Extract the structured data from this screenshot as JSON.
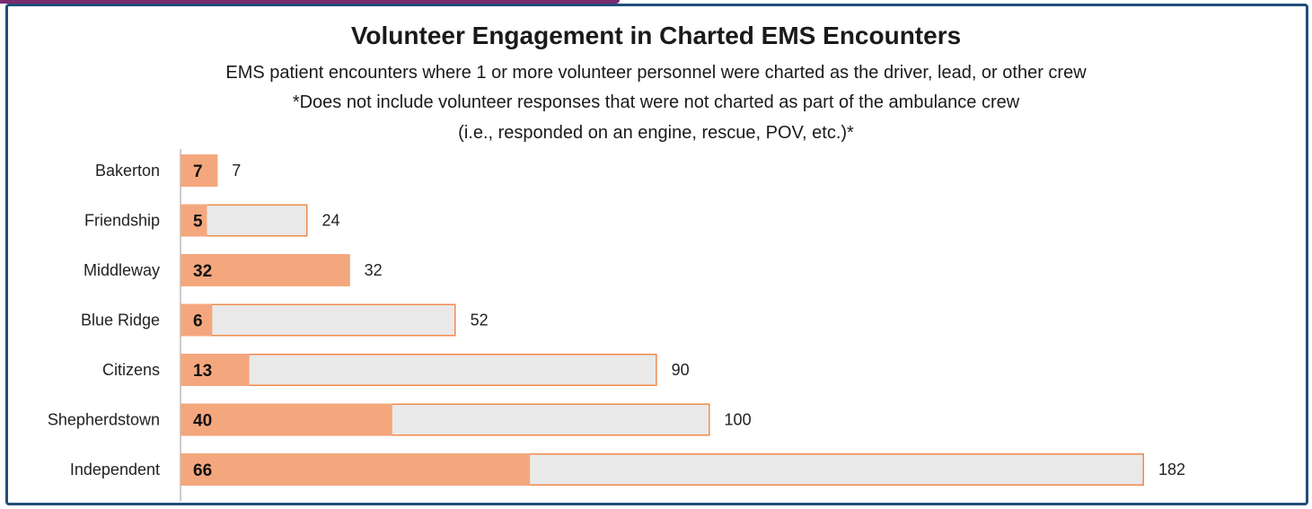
{
  "chart_data": {
    "type": "bar",
    "orientation": "horizontal",
    "title": "Volunteer Engagement in Charted EMS Encounters",
    "subtitle_lines": [
      "EMS patient encounters where 1 or more volunteer personnel were charted as the driver, lead, or other crew",
      "*Does not include volunteer responses that were not charted as part of the ambulance crew",
      "(i.e., responded on an engine, rescue, POV, etc.)*"
    ],
    "categories": [
      "Bakerton",
      "Friendship",
      "Middleway",
      "Blue Ridge",
      "Citizens",
      "Shepherdstown",
      "Independent"
    ],
    "series": [
      {
        "values": [
          7,
          24,
          32,
          52,
          90,
          100,
          182
        ]
      },
      {
        "values": [
          7,
          5,
          32,
          6,
          13,
          40,
          66
        ]
      }
    ],
    "xlim": [
      0,
      182
    ],
    "grid": false,
    "legend": "none",
    "colors": {
      "volunteer_fill": "#f4a77d",
      "total_fill": "#e9e9e9",
      "bar_border": "#f08a4b",
      "frame": "#1f4e79",
      "accent": "#7a2a6e",
      "axis": "#999999"
    }
  }
}
